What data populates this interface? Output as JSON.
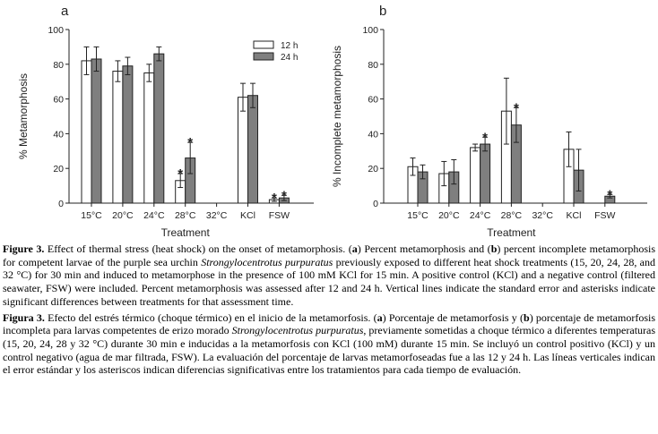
{
  "chart_data": [
    {
      "type": "bar",
      "panel_label": "a",
      "ylabel": "% Metamorphosis",
      "xlabel": "Treatment",
      "ylim": [
        0,
        100
      ],
      "yticks": [
        0,
        20,
        40,
        60,
        80,
        100
      ],
      "categories": [
        "15°C",
        "20°C",
        "24°C",
        "28°C",
        "32°C",
        "KCl",
        "FSW"
      ],
      "legend": {
        "position": "top-right",
        "entries": [
          "12 h",
          "24 h"
        ]
      },
      "series": [
        {
          "name": "12 h",
          "color": "#ffffff",
          "values": [
            82,
            76,
            75,
            13,
            0,
            61,
            2
          ],
          "errors": [
            8,
            6,
            5,
            4,
            0,
            8,
            1
          ],
          "significant": [
            false,
            false,
            false,
            true,
            false,
            false,
            true
          ]
        },
        {
          "name": "24 h",
          "color": "#7f7f7f",
          "values": [
            83,
            79,
            86,
            26,
            0,
            62,
            3
          ],
          "errors": [
            7,
            5,
            4,
            9,
            0,
            7,
            1.5
          ],
          "significant": [
            false,
            false,
            false,
            true,
            false,
            false,
            true
          ]
        }
      ],
      "significance_marker": "*"
    },
    {
      "type": "bar",
      "panel_label": "b",
      "ylabel": "% Incomplete metamorphosis",
      "xlabel": "Treatment",
      "ylim": [
        0,
        100
      ],
      "yticks": [
        0,
        20,
        40,
        60,
        80,
        100
      ],
      "categories": [
        "15°C",
        "20°C",
        "24°C",
        "28°C",
        "32°C",
        "KCl",
        "FSW"
      ],
      "series": [
        {
          "name": "12 h",
          "color": "#ffffff",
          "values": [
            21,
            17,
            32,
            53,
            0,
            31,
            0
          ],
          "errors": [
            5,
            7,
            2,
            19,
            0,
            10,
            0
          ],
          "significant": [
            false,
            false,
            false,
            false,
            false,
            false,
            false
          ]
        },
        {
          "name": "24 h",
          "color": "#7f7f7f",
          "values": [
            18,
            18,
            34,
            45,
            0,
            19,
            4
          ],
          "errors": [
            4,
            7,
            4,
            10,
            0,
            12,
            1
          ],
          "significant": [
            false,
            false,
            true,
            true,
            false,
            false,
            true
          ]
        }
      ],
      "significance_marker": "*"
    }
  ],
  "captions": {
    "en_label": "Figure 3.",
    "en_text_1": " Effect of thermal stress (heat shock) on the onset of metamorphosis. (",
    "en_a": "a",
    "en_text_2": ") Percent metamorphosis and (",
    "en_b": "b",
    "en_text_3": ") percent incomplete metamorphosis for competent larvae of the purple sea urchin ",
    "en_species": "Strongylocentrotus purpuratus",
    "en_text_4": " previously exposed to different heat shock treatments (15, 20, 24, 28, and 32 °C) for 30 min and induced to metamorphose in the presence of 100 mM KCl for 15 min. A positive control (KCl) and a negative control (filtered seawater, FSW) were included. Percent metamorphosis was assessed after 12 and 24 h. Vertical lines indicate the standard error and asterisks indicate significant differences between treatments for that assessment time.",
    "es_label": "Figura 3.",
    "es_text_1": " Efecto del estrés térmico (choque térmico) en el inicio de la metamorfosis. (",
    "es_a": "a",
    "es_text_2": ") Porcentaje de metamorfosis y (",
    "es_b": "b",
    "es_text_3": ") porcentaje de metamorfosis incompleta para larvas competentes de erizo morado ",
    "es_species": "Strongylocentrotus purpuratus",
    "es_text_4": ", previamente sometidas a choque térmico a diferentes temperaturas (15, 20, 24, 28 y 32 °C) durante 30 min e inducidas a la metamorfosis con KCl (100 mM) durante 15 min. Se incluyó un control positivo (KCl) y un control negativo (agua de mar filtrada, FSW). La evaluación del porcentaje de larvas metamorfoseadas fue a las 12 y 24 h.  Las líneas verticales indican el error estándar y los asteriscos indican diferencias significativas entre los tratamientos para cada tiempo de evaluación."
  }
}
